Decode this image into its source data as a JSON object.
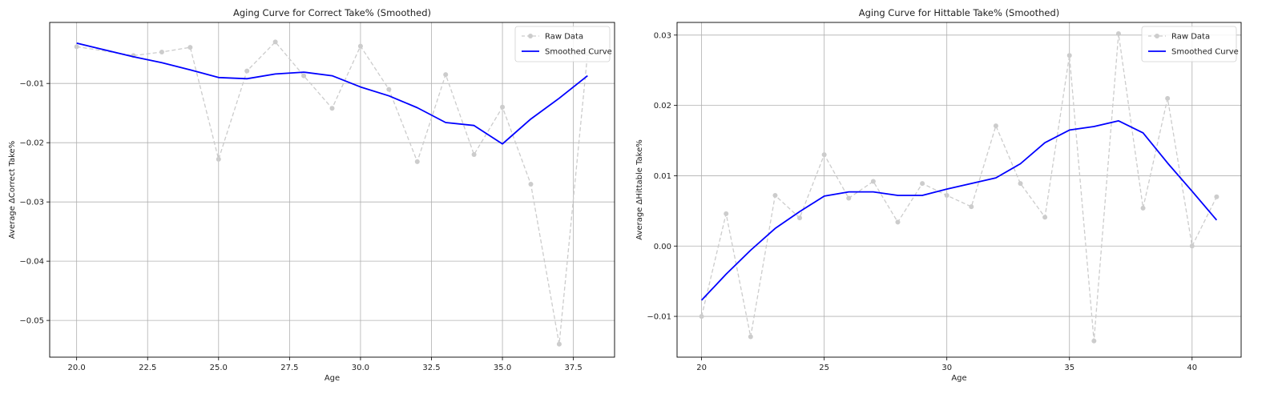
{
  "chart_data": [
    {
      "type": "line",
      "title": "Aging Curve for Correct Take% (Smoothed)",
      "xlabel": "Age",
      "ylabel": "Average ΔCorrect Take%",
      "xlim": [
        19.05,
        38.95
      ],
      "ylim": [
        -0.0562,
        0.0003
      ],
      "xticks": [
        20.0,
        22.5,
        25.0,
        27.5,
        30.0,
        32.5,
        35.0,
        37.5
      ],
      "xtick_labels": [
        "20.0",
        "22.5",
        "25.0",
        "27.5",
        "30.0",
        "32.5",
        "35.0",
        "37.5"
      ],
      "yticks": [
        -0.05,
        -0.04,
        -0.03,
        -0.02,
        -0.01
      ],
      "ytick_labels": [
        "−0.05",
        "−0.04",
        "−0.03",
        "−0.02",
        "−0.01"
      ],
      "grid": true,
      "legend_position": "top-right",
      "series": [
        {
          "name": "Raw Data",
          "style": "dashed-markers",
          "color": "#cccccc",
          "x": [
            20,
            22,
            23,
            24,
            25,
            26,
            27,
            28,
            29,
            30,
            31,
            32,
            33,
            34,
            35,
            36,
            37,
            38
          ],
          "y": [
            -0.0038,
            -0.0053,
            -0.0047,
            -0.0039,
            -0.0228,
            -0.0079,
            -0.003,
            -0.0087,
            -0.0142,
            -0.0037,
            -0.011,
            -0.0232,
            -0.0085,
            -0.022,
            -0.014,
            -0.027,
            -0.054,
            -0.005
          ]
        },
        {
          "name": "Smoothed Curve",
          "style": "solid",
          "color": "#0000ff",
          "x": [
            20,
            22,
            23,
            24,
            25,
            26,
            27,
            28,
            29,
            30,
            31,
            32,
            33,
            34,
            35,
            36,
            37,
            38
          ],
          "y": [
            -0.0032,
            -0.0055,
            -0.0065,
            -0.0077,
            -0.009,
            -0.0092,
            -0.0084,
            -0.0081,
            -0.0087,
            -0.0106,
            -0.0121,
            -0.0141,
            -0.0166,
            -0.0171,
            -0.0202,
            -0.016,
            -0.0125,
            -0.0087
          ]
        }
      ]
    },
    {
      "type": "line",
      "title": "Aging Curve for Hittable Take% (Smoothed)",
      "xlabel": "Age",
      "ylabel": "Average ΔHittable Take%",
      "xlim": [
        19.0,
        42.0
      ],
      "ylim": [
        -0.0158,
        0.0318
      ],
      "xticks": [
        20,
        25,
        30,
        35,
        40
      ],
      "xtick_labels": [
        "20",
        "25",
        "30",
        "35",
        "40"
      ],
      "yticks": [
        -0.01,
        0.0,
        0.01,
        0.02,
        0.03
      ],
      "ytick_labels": [
        "−0.01",
        "0.00",
        "0.01",
        "0.02",
        "0.03"
      ],
      "grid": true,
      "legend_position": "top-right",
      "series": [
        {
          "name": "Raw Data",
          "style": "dashed-markers",
          "color": "#cccccc",
          "x": [
            20,
            21,
            22,
            23,
            24,
            25,
            26,
            27,
            28,
            29,
            30,
            31,
            32,
            33,
            34,
            35,
            36,
            37,
            38,
            39,
            40,
            41
          ],
          "y": [
            -0.01,
            0.0046,
            -0.0129,
            0.0072,
            0.004,
            0.013,
            0.0068,
            0.0092,
            0.0034,
            0.0089,
            0.0072,
            0.0056,
            0.0171,
            0.0089,
            0.0041,
            0.0271,
            -0.0135,
            0.0302,
            0.0054,
            0.021,
            0.0,
            0.007
          ]
        },
        {
          "name": "Smoothed Curve",
          "style": "solid",
          "color": "#0000ff",
          "x": [
            20,
            21,
            22,
            23,
            24,
            25,
            26,
            27,
            28,
            29,
            30,
            31,
            32,
            33,
            34,
            35,
            36,
            37,
            38,
            39,
            40,
            41
          ],
          "y": [
            -0.0077,
            -0.004,
            -0.0006,
            0.0025,
            0.0049,
            0.0071,
            0.0077,
            0.0077,
            0.0072,
            0.0072,
            0.0081,
            0.0089,
            0.0097,
            0.0117,
            0.0147,
            0.0165,
            0.017,
            0.0178,
            0.0161,
            0.0118,
            0.0078,
            0.0037
          ]
        }
      ]
    }
  ]
}
